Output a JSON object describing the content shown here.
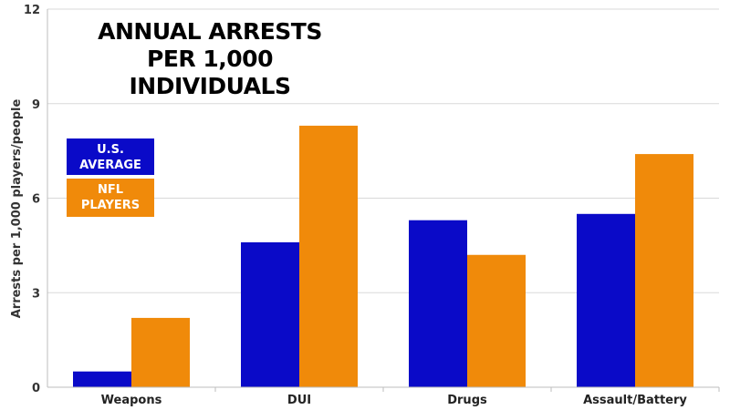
{
  "chart_data": {
    "type": "bar",
    "title": "ANNUAL ARRESTS PER 1,000 INDIVIDUALS",
    "title_lines": [
      "ANNUAL ARRESTS",
      "PER 1,000 INDIVIDUALS"
    ],
    "xlabel": "",
    "ylabel": "Arrests per 1,000 players/people",
    "ylim": [
      0,
      12
    ],
    "yticks": [
      0,
      3,
      6,
      9,
      12
    ],
    "grid": "horizontal",
    "legend_position": "top-left",
    "categories": [
      "Weapons",
      "DUI",
      "Drugs",
      "Assault/Battery"
    ],
    "series": [
      {
        "name": "U.S. AVERAGE",
        "lines": [
          "U.S.",
          "AVERAGE"
        ],
        "color": "#0a0ac8",
        "values": [
          0.5,
          4.6,
          5.3,
          5.5
        ]
      },
      {
        "name": "NFL PLAYERS",
        "lines": [
          "NFL",
          "PLAYERS"
        ],
        "color": "#f08a0a",
        "values": [
          2.2,
          8.3,
          4.2,
          7.4
        ]
      }
    ]
  }
}
